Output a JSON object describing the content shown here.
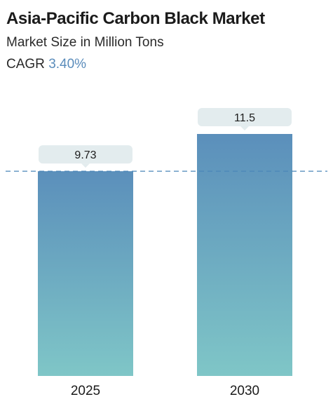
{
  "header": {
    "title": "Asia-Pacific Carbon Black Market",
    "subtitle": "Market Size in Million Tons",
    "cagr_label": "CAGR",
    "cagr_value": "3.40%"
  },
  "colors": {
    "bar_top": "#5b8fbb",
    "bar_bottom": "#7fc6c7",
    "label_bg": "#e3ecee",
    "reference_line": "#4a86b8",
    "cagr_accent": "#5a8cbb"
  },
  "chart_data": {
    "type": "bar",
    "categories": [
      "2025",
      "2030"
    ],
    "values": [
      9.73,
      11.5
    ],
    "data_labels": [
      "9.73",
      "11.5"
    ],
    "ylim": [
      0,
      11.5
    ],
    "reference_line": {
      "value": 9.73,
      "style": "dashed"
    },
    "grid": false,
    "legend": "none"
  }
}
